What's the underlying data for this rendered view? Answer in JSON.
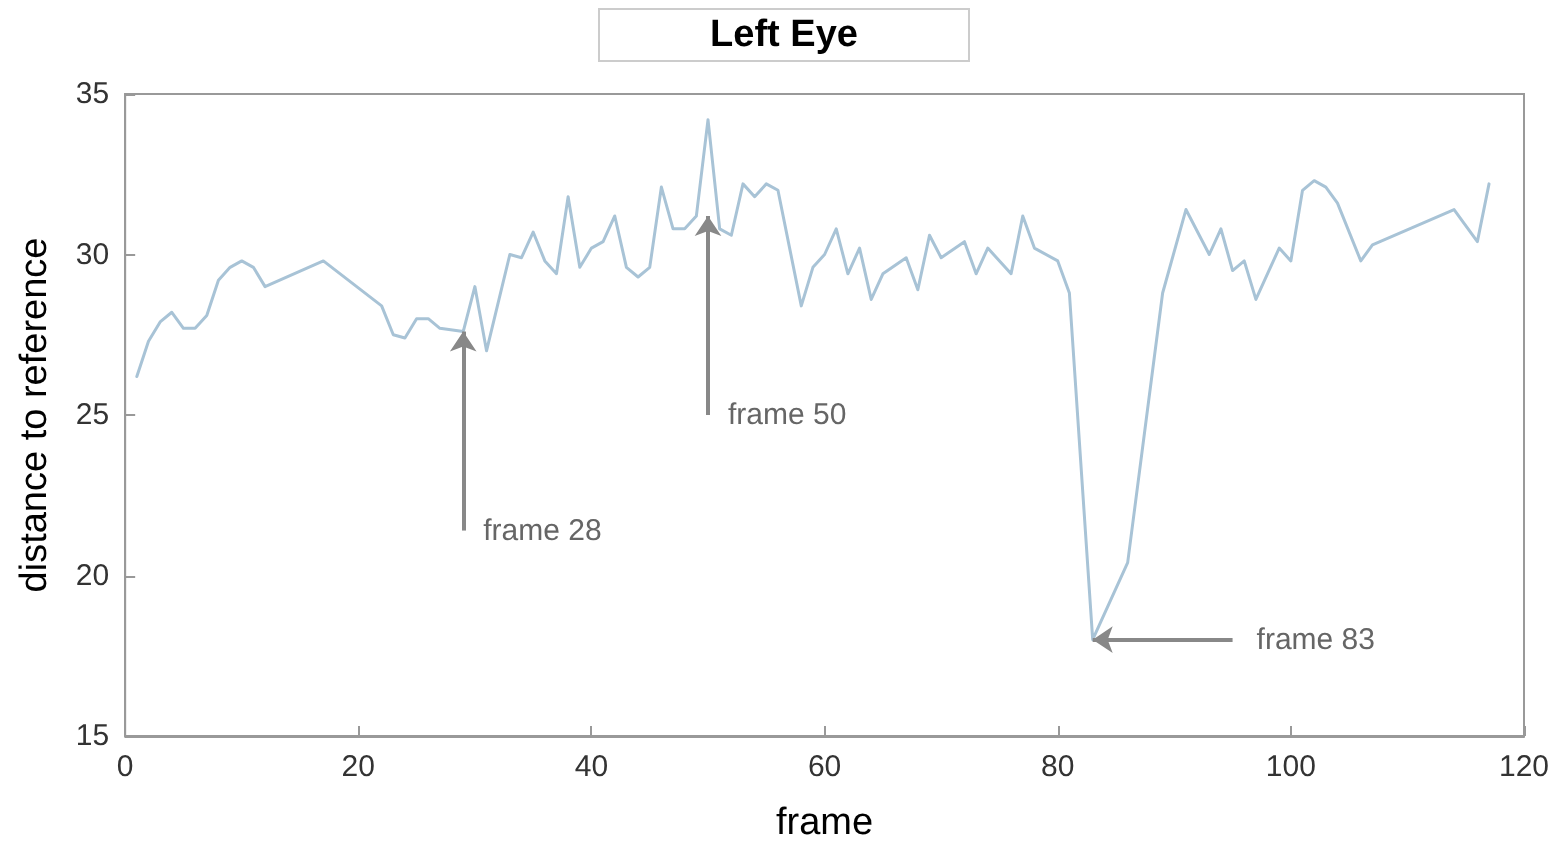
{
  "chart_data": {
    "type": "line",
    "title": "Left Eye",
    "xlabel": "frame",
    "ylabel": "distance to reference",
    "series": [
      {
        "color": "#a8c3d6",
        "x": [
          1,
          2,
          3,
          4,
          5,
          6,
          7,
          8,
          9,
          10,
          11,
          12,
          17,
          22,
          23,
          24,
          25,
          26,
          27,
          29,
          30,
          31,
          32,
          33,
          34,
          35,
          36,
          37,
          38,
          39,
          40,
          41,
          42,
          43,
          44,
          45,
          46,
          47,
          48,
          49,
          50,
          51,
          52,
          53,
          54,
          55,
          56,
          57,
          58,
          59,
          60,
          61,
          62,
          63,
          64,
          65,
          67,
          68,
          69,
          70,
          72,
          73,
          74,
          76,
          77,
          78,
          80,
          81,
          83,
          86,
          89,
          91,
          93,
          94,
          95,
          96,
          97,
          99,
          100,
          101,
          102,
          103,
          104,
          106,
          107,
          114,
          116,
          117
        ],
        "values": [
          26.2,
          27.3,
          27.9,
          28.2,
          27.7,
          27.7,
          28.1,
          29.2,
          29.6,
          29.8,
          29.6,
          29.0,
          29.8,
          28.4,
          27.5,
          27.4,
          28.0,
          28.0,
          27.7,
          27.6,
          29.0,
          27.0,
          28.5,
          30.0,
          29.9,
          30.7,
          29.8,
          29.4,
          31.8,
          29.6,
          30.2,
          30.4,
          31.2,
          29.6,
          29.3,
          29.6,
          32.1,
          30.8,
          30.8,
          31.2,
          34.2,
          30.8,
          30.6,
          32.2,
          31.8,
          32.2,
          32.0,
          30.2,
          28.4,
          29.6,
          30.0,
          30.8,
          29.4,
          30.2,
          28.6,
          29.4,
          29.9,
          28.9,
          30.6,
          29.9,
          30.4,
          29.4,
          30.2,
          29.4,
          31.2,
          30.2,
          29.8,
          28.8,
          18.0,
          20.4,
          28.8,
          31.4,
          30.0,
          30.8,
          29.5,
          29.8,
          28.6,
          30.2,
          29.8,
          32.0,
          32.3,
          32.1,
          31.6,
          29.8,
          30.3,
          31.4,
          30.4,
          32.2
        ]
      }
    ],
    "xlim": [
      0,
      120
    ],
    "xticks": [
      0,
      20,
      40,
      60,
      80,
      100,
      120
    ],
    "ylim": [
      15,
      35
    ],
    "yticks": [
      15,
      20,
      25,
      30,
      35
    ],
    "grid": false,
    "marker": "none",
    "line_style": "solid",
    "annotations": [
      {
        "text": "frame 28",
        "x": 29,
        "y": 27.6
      },
      {
        "text": "frame 50",
        "x": 50,
        "y": 31.2
      },
      {
        "text": "frame 83",
        "x": 83,
        "y": 18.0
      }
    ]
  }
}
